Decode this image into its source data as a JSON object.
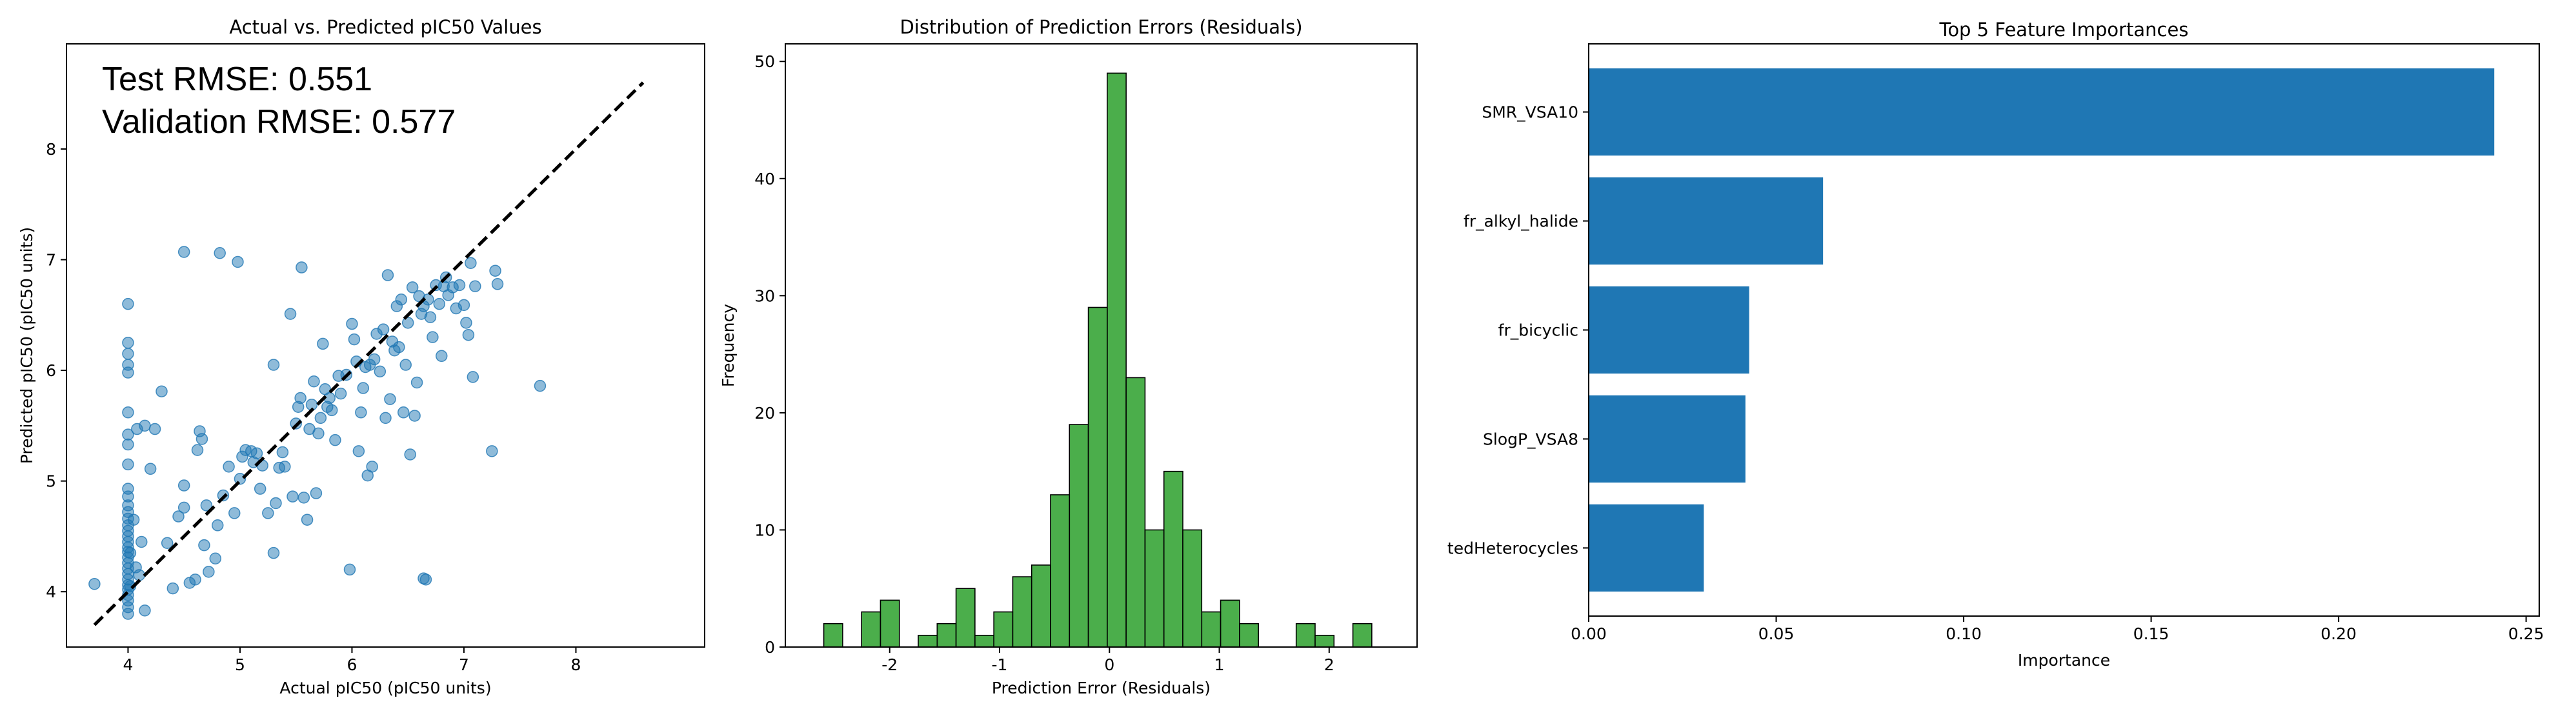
{
  "chart_data": [
    {
      "type": "scatter",
      "title": "Actual vs. Predicted pIC50 Values",
      "xlabel": "Actual pIC50 (pIC50 units)",
      "ylabel": "Predicted pIC50 (pIC50 units)",
      "xlim": [
        3.45,
        9.15
      ],
      "ylim": [
        3.5,
        8.95
      ],
      "xticks": [
        4,
        5,
        6,
        7,
        8
      ],
      "yticks": [
        4,
        5,
        6,
        7,
        8
      ],
      "annotations": [
        "Test RMSE: 0.551",
        "Validation RMSE: 0.577"
      ],
      "diagonal": [
        [
          3.7,
          3.7
        ],
        [
          8.6,
          8.6
        ]
      ],
      "point_color": "#1f77b4",
      "points": [
        [
          3.7,
          4.07
        ],
        [
          4.0,
          6.6
        ],
        [
          4.0,
          6.25
        ],
        [
          4.0,
          6.15
        ],
        [
          4.0,
          6.05
        ],
        [
          4.0,
          5.98
        ],
        [
          4.0,
          5.62
        ],
        [
          4.0,
          5.42
        ],
        [
          4.0,
          5.33
        ],
        [
          4.0,
          5.15
        ],
        [
          4.0,
          4.93
        ],
        [
          4.0,
          4.86
        ],
        [
          4.0,
          4.78
        ],
        [
          4.0,
          4.72
        ],
        [
          4.0,
          4.66
        ],
        [
          4.0,
          4.6
        ],
        [
          4.0,
          4.55
        ],
        [
          4.0,
          4.5
        ],
        [
          4.0,
          4.45
        ],
        [
          4.0,
          4.4
        ],
        [
          4.0,
          4.36
        ],
        [
          4.0,
          4.31
        ],
        [
          4.0,
          4.26
        ],
        [
          4.0,
          4.21
        ],
        [
          4.0,
          4.16
        ],
        [
          4.0,
          4.11
        ],
        [
          4.0,
          4.06
        ],
        [
          4.0,
          4.02
        ],
        [
          4.0,
          3.97
        ],
        [
          4.0,
          3.92
        ],
        [
          4.0,
          3.86
        ],
        [
          4.0,
          3.8
        ],
        [
          4.02,
          4.05
        ],
        [
          4.02,
          4.35
        ],
        [
          4.05,
          4.65
        ],
        [
          4.07,
          4.22
        ],
        [
          4.08,
          5.47
        ],
        [
          4.1,
          4.15
        ],
        [
          4.12,
          4.45
        ],
        [
          4.15,
          5.5
        ],
        [
          4.15,
          3.83
        ],
        [
          4.2,
          5.11
        ],
        [
          4.24,
          5.47
        ],
        [
          4.3,
          5.81
        ],
        [
          4.35,
          4.44
        ],
        [
          4.4,
          4.03
        ],
        [
          4.45,
          4.68
        ],
        [
          4.5,
          4.96
        ],
        [
          4.5,
          4.76
        ],
        [
          4.5,
          7.07
        ],
        [
          4.55,
          4.08
        ],
        [
          4.6,
          4.11
        ],
        [
          4.62,
          5.28
        ],
        [
          4.64,
          5.45
        ],
        [
          4.66,
          5.38
        ],
        [
          4.68,
          4.42
        ],
        [
          4.7,
          4.78
        ],
        [
          4.72,
          4.18
        ],
        [
          4.78,
          4.3
        ],
        [
          4.8,
          4.6
        ],
        [
          4.82,
          7.06
        ],
        [
          4.85,
          4.87
        ],
        [
          4.9,
          5.13
        ],
        [
          4.95,
          4.71
        ],
        [
          4.98,
          6.98
        ],
        [
          5.0,
          5.02
        ],
        [
          5.02,
          5.22
        ],
        [
          5.05,
          5.28
        ],
        [
          5.1,
          5.27
        ],
        [
          5.12,
          5.17
        ],
        [
          5.15,
          5.25
        ],
        [
          5.18,
          4.93
        ],
        [
          5.2,
          5.14
        ],
        [
          5.25,
          4.71
        ],
        [
          5.3,
          4.35
        ],
        [
          5.3,
          6.05
        ],
        [
          5.32,
          4.8
        ],
        [
          5.35,
          5.12
        ],
        [
          5.38,
          5.26
        ],
        [
          5.4,
          5.13
        ],
        [
          5.45,
          6.51
        ],
        [
          5.47,
          4.86
        ],
        [
          5.5,
          5.52
        ],
        [
          5.52,
          5.67
        ],
        [
          5.54,
          5.75
        ],
        [
          5.55,
          6.93
        ],
        [
          5.57,
          4.85
        ],
        [
          5.6,
          4.65
        ],
        [
          5.62,
          5.47
        ],
        [
          5.64,
          5.69
        ],
        [
          5.66,
          5.9
        ],
        [
          5.68,
          4.89
        ],
        [
          5.7,
          5.43
        ],
        [
          5.72,
          5.57
        ],
        [
          5.74,
          6.24
        ],
        [
          5.76,
          5.83
        ],
        [
          5.78,
          5.67
        ],
        [
          5.8,
          5.75
        ],
        [
          5.82,
          5.64
        ],
        [
          5.85,
          5.37
        ],
        [
          5.88,
          5.95
        ],
        [
          5.9,
          5.79
        ],
        [
          5.95,
          5.96
        ],
        [
          5.98,
          4.2
        ],
        [
          6.0,
          6.42
        ],
        [
          6.02,
          6.28
        ],
        [
          6.04,
          6.08
        ],
        [
          6.06,
          5.27
        ],
        [
          6.08,
          5.62
        ],
        [
          6.1,
          5.84
        ],
        [
          6.12,
          6.03
        ],
        [
          6.14,
          5.05
        ],
        [
          6.16,
          6.05
        ],
        [
          6.18,
          5.13
        ],
        [
          6.2,
          6.1
        ],
        [
          6.22,
          6.33
        ],
        [
          6.25,
          5.99
        ],
        [
          6.28,
          6.37
        ],
        [
          6.3,
          5.57
        ],
        [
          6.32,
          6.86
        ],
        [
          6.34,
          5.74
        ],
        [
          6.36,
          6.26
        ],
        [
          6.38,
          6.18
        ],
        [
          6.4,
          6.58
        ],
        [
          6.42,
          6.21
        ],
        [
          6.44,
          6.64
        ],
        [
          6.46,
          5.62
        ],
        [
          6.48,
          6.05
        ],
        [
          6.5,
          6.43
        ],
        [
          6.52,
          5.24
        ],
        [
          6.54,
          6.75
        ],
        [
          6.56,
          5.59
        ],
        [
          6.58,
          5.89
        ],
        [
          6.6,
          6.67
        ],
        [
          6.62,
          6.51
        ],
        [
          6.64,
          6.58
        ],
        [
          6.66,
          4.11
        ],
        [
          6.68,
          6.64
        ],
        [
          6.7,
          6.48
        ],
        [
          6.72,
          6.3
        ],
        [
          6.75,
          6.77
        ],
        [
          6.78,
          6.6
        ],
        [
          6.8,
          6.13
        ],
        [
          6.82,
          6.76
        ],
        [
          6.84,
          6.84
        ],
        [
          6.86,
          6.68
        ],
        [
          6.9,
          6.75
        ],
        [
          6.93,
          6.56
        ],
        [
          6.96,
          6.77
        ],
        [
          7.0,
          6.59
        ],
        [
          7.02,
          6.43
        ],
        [
          7.04,
          6.32
        ],
        [
          7.06,
          6.97
        ],
        [
          7.08,
          5.94
        ],
        [
          7.1,
          6.76
        ],
        [
          7.25,
          5.27
        ],
        [
          7.28,
          6.9
        ],
        [
          7.3,
          6.78
        ],
        [
          7.68,
          5.86
        ],
        [
          6.64,
          4.12
        ]
      ]
    },
    {
      "type": "bar",
      "title": "Distribution of Prediction Errors (Residuals)",
      "xlabel": "Prediction Error (Residuals)",
      "ylabel": "Frequency",
      "xlim": [
        -2.95,
        2.8
      ],
      "ylim": [
        0,
        51.5
      ],
      "xticks": [
        -2,
        -1,
        0,
        1,
        2
      ],
      "yticks": [
        0,
        10,
        20,
        30,
        40,
        50
      ],
      "bar_color": "#2ca02c",
      "bin_start": -2.6,
      "bin_width": 0.172,
      "counts": [
        2,
        0,
        3,
        4,
        0,
        1,
        2,
        5,
        1,
        3,
        6,
        7,
        13,
        19,
        29,
        49,
        23,
        10,
        15,
        10,
        3,
        4,
        2,
        0,
        0,
        2,
        1,
        0,
        2
      ]
    },
    {
      "type": "bar",
      "orientation": "horizontal",
      "title": "Top 5 Feature Importances",
      "xlabel": "Importance",
      "ylabel": "",
      "xlim": [
        0,
        0.2535
      ],
      "xticks": [
        "0.00",
        "0.05",
        "0.10",
        "0.15",
        "0.20",
        "0.25"
      ],
      "bar_color": "#1f77b4",
      "categories": [
        "SMR_VSA10",
        "fr_alkyl_halide",
        "fr_bicyclic",
        "SlogP_VSA8",
        "tedHeterocycles"
      ],
      "values": [
        0.2415,
        0.0625,
        0.0428,
        0.0418,
        0.0307
      ]
    }
  ]
}
